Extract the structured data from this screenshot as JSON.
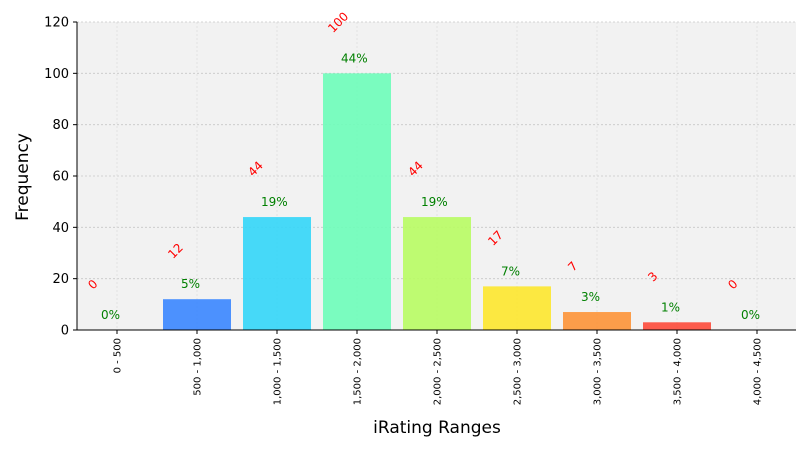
{
  "chart_data": {
    "type": "bar",
    "title": "",
    "xlabel": "iRating Ranges",
    "ylabel": "Frequency",
    "ylim": [
      0,
      120
    ],
    "yticks": [
      0,
      20,
      40,
      60,
      80,
      100,
      120
    ],
    "grid": true,
    "categories": [
      "0 - 500",
      "500 - 1,000",
      "1,000 - 1,500",
      "1,500 - 2,000",
      "2,000 - 2,500",
      "2,500 - 3,000",
      "3,000 - 3,500",
      "3,500 - 4,000",
      "4,000 - 4,500"
    ],
    "values": [
      0,
      12,
      44,
      100,
      44,
      17,
      7,
      3,
      0
    ],
    "count_labels": [
      "0",
      "12",
      "44",
      "100",
      "44",
      "17",
      "7",
      "3",
      "0"
    ],
    "percent_labels": [
      "0%",
      "5%",
      "19%",
      "44%",
      "19%",
      "7%",
      "3%",
      "1%",
      "0%"
    ],
    "bar_colors": [
      "#3a86ff",
      "#3a86ff",
      "#33d6f8",
      "#6dfdb9",
      "#b8fc63",
      "#fde72e",
      "#fd9437",
      "#fd4a3a",
      "#fd4a3a"
    ],
    "count_label_color": "#ff0000",
    "percent_label_color": "#008000",
    "plot_background": "#f2f2f2"
  }
}
